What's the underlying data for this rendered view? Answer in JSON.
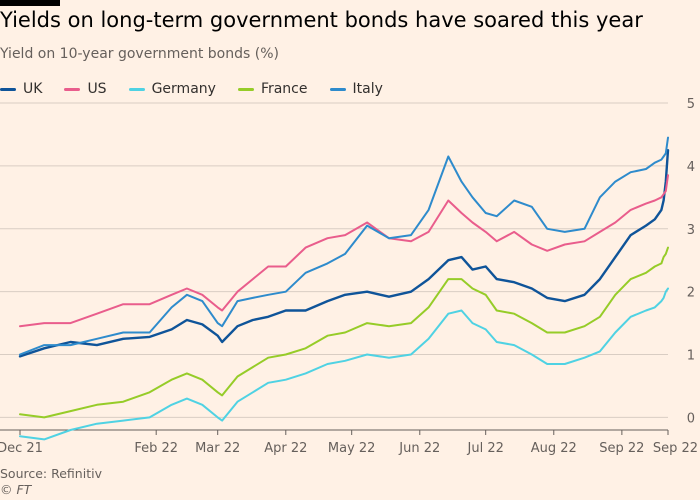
{
  "title": "Yields on long-term government bonds have soared this year",
  "subtitle": "Yield on 10-year government bonds (%)",
  "source": "Source: Refinitiv",
  "credit": "© FT",
  "chart_data": {
    "type": "line",
    "title": "Yields on long-term government bonds have soared this year",
    "ylabel": "Yield on 10-year government bonds (%)",
    "xlabel": "",
    "ylim": [
      -0.2,
      5
    ],
    "yticks": [
      0,
      1,
      2,
      3,
      4,
      5
    ],
    "xlim": [
      "2021-12-01",
      "2022-09-22"
    ],
    "xticks": [
      {
        "date": "2021-12-01",
        "label": "Dec 21"
      },
      {
        "date": "2022-02-01",
        "label": "Feb 22"
      },
      {
        "date": "2022-03-01",
        "label": "Mar 22"
      },
      {
        "date": "2022-04-01",
        "label": "Apr 22"
      },
      {
        "date": "2022-05-01",
        "label": "May 22"
      },
      {
        "date": "2022-06-01",
        "label": "Jun 22"
      },
      {
        "date": "2022-07-01",
        "label": "Jul 22"
      },
      {
        "date": "2022-08-01",
        "label": "Aug 22"
      },
      {
        "date": "2022-09-01",
        "label": "Sep 22"
      },
      {
        "date": "2022-09-22",
        "label": "Sep 22"
      }
    ],
    "grid": true,
    "legend_position": "top-left",
    "series": [
      {
        "name": "UK",
        "color": "#0f5499",
        "width": 2.4,
        "points": [
          [
            "2021-12-01",
            0.97
          ],
          [
            "2021-12-12",
            1.1
          ],
          [
            "2021-12-24",
            1.2
          ],
          [
            "2022-01-05",
            1.15
          ],
          [
            "2022-01-17",
            1.25
          ],
          [
            "2022-01-29",
            1.28
          ],
          [
            "2022-02-08",
            1.4
          ],
          [
            "2022-02-15",
            1.55
          ],
          [
            "2022-02-22",
            1.48
          ],
          [
            "2022-03-01",
            1.3
          ],
          [
            "2022-03-03",
            1.2
          ],
          [
            "2022-03-10",
            1.45
          ],
          [
            "2022-03-17",
            1.55
          ],
          [
            "2022-03-24",
            1.6
          ],
          [
            "2022-04-01",
            1.7
          ],
          [
            "2022-04-10",
            1.7
          ],
          [
            "2022-04-20",
            1.85
          ],
          [
            "2022-04-28",
            1.95
          ],
          [
            "2022-05-08",
            2.0
          ],
          [
            "2022-05-18",
            1.92
          ],
          [
            "2022-05-28",
            2.0
          ],
          [
            "2022-06-05",
            2.2
          ],
          [
            "2022-06-14",
            2.5
          ],
          [
            "2022-06-20",
            2.55
          ],
          [
            "2022-06-25",
            2.35
          ],
          [
            "2022-07-01",
            2.4
          ],
          [
            "2022-07-06",
            2.2
          ],
          [
            "2022-07-14",
            2.15
          ],
          [
            "2022-07-22",
            2.05
          ],
          [
            "2022-07-29",
            1.9
          ],
          [
            "2022-08-06",
            1.85
          ],
          [
            "2022-08-15",
            1.95
          ],
          [
            "2022-08-22",
            2.2
          ],
          [
            "2022-08-29",
            2.55
          ],
          [
            "2022-09-05",
            2.9
          ],
          [
            "2022-09-12",
            3.05
          ],
          [
            "2022-09-16",
            3.15
          ],
          [
            "2022-09-19",
            3.3
          ],
          [
            "2022-09-20",
            3.45
          ],
          [
            "2022-09-21",
            3.75
          ],
          [
            "2022-09-22",
            4.25
          ]
        ]
      },
      {
        "name": "US",
        "color": "#e95d8c",
        "width": 2.0,
        "points": [
          [
            "2021-12-01",
            1.45
          ],
          [
            "2021-12-12",
            1.5
          ],
          [
            "2021-12-24",
            1.5
          ],
          [
            "2022-01-05",
            1.65
          ],
          [
            "2022-01-17",
            1.8
          ],
          [
            "2022-01-29",
            1.8
          ],
          [
            "2022-02-08",
            1.95
          ],
          [
            "2022-02-15",
            2.05
          ],
          [
            "2022-02-22",
            1.95
          ],
          [
            "2022-03-01",
            1.75
          ],
          [
            "2022-03-03",
            1.7
          ],
          [
            "2022-03-10",
            2.0
          ],
          [
            "2022-03-17",
            2.2
          ],
          [
            "2022-03-24",
            2.4
          ],
          [
            "2022-04-01",
            2.4
          ],
          [
            "2022-04-10",
            2.7
          ],
          [
            "2022-04-20",
            2.85
          ],
          [
            "2022-04-28",
            2.9
          ],
          [
            "2022-05-08",
            3.1
          ],
          [
            "2022-05-18",
            2.85
          ],
          [
            "2022-05-28",
            2.8
          ],
          [
            "2022-06-05",
            2.95
          ],
          [
            "2022-06-14",
            3.45
          ],
          [
            "2022-06-20",
            3.25
          ],
          [
            "2022-06-25",
            3.1
          ],
          [
            "2022-07-01",
            2.95
          ],
          [
            "2022-07-06",
            2.8
          ],
          [
            "2022-07-14",
            2.95
          ],
          [
            "2022-07-22",
            2.75
          ],
          [
            "2022-07-29",
            2.65
          ],
          [
            "2022-08-06",
            2.75
          ],
          [
            "2022-08-15",
            2.8
          ],
          [
            "2022-08-22",
            2.95
          ],
          [
            "2022-08-29",
            3.1
          ],
          [
            "2022-09-05",
            3.3
          ],
          [
            "2022-09-12",
            3.4
          ],
          [
            "2022-09-16",
            3.45
          ],
          [
            "2022-09-19",
            3.5
          ],
          [
            "2022-09-20",
            3.55
          ],
          [
            "2022-09-21",
            3.6
          ],
          [
            "2022-09-22",
            3.85
          ]
        ]
      },
      {
        "name": "Germany",
        "color": "#4fd2e3",
        "width": 2.0,
        "points": [
          [
            "2021-12-01",
            -0.3
          ],
          [
            "2021-12-12",
            -0.35
          ],
          [
            "2021-12-24",
            -0.2
          ],
          [
            "2022-01-05",
            -0.1
          ],
          [
            "2022-01-17",
            -0.05
          ],
          [
            "2022-01-29",
            0.0
          ],
          [
            "2022-02-08",
            0.2
          ],
          [
            "2022-02-15",
            0.3
          ],
          [
            "2022-02-22",
            0.2
          ],
          [
            "2022-03-01",
            0.0
          ],
          [
            "2022-03-03",
            -0.05
          ],
          [
            "2022-03-10",
            0.25
          ],
          [
            "2022-03-17",
            0.4
          ],
          [
            "2022-03-24",
            0.55
          ],
          [
            "2022-04-01",
            0.6
          ],
          [
            "2022-04-10",
            0.7
          ],
          [
            "2022-04-20",
            0.85
          ],
          [
            "2022-04-28",
            0.9
          ],
          [
            "2022-05-08",
            1.0
          ],
          [
            "2022-05-18",
            0.95
          ],
          [
            "2022-05-28",
            1.0
          ],
          [
            "2022-06-05",
            1.25
          ],
          [
            "2022-06-14",
            1.65
          ],
          [
            "2022-06-20",
            1.7
          ],
          [
            "2022-06-25",
            1.5
          ],
          [
            "2022-07-01",
            1.4
          ],
          [
            "2022-07-06",
            1.2
          ],
          [
            "2022-07-14",
            1.15
          ],
          [
            "2022-07-22",
            1.0
          ],
          [
            "2022-07-29",
            0.85
          ],
          [
            "2022-08-06",
            0.85
          ],
          [
            "2022-08-15",
            0.95
          ],
          [
            "2022-08-22",
            1.05
          ],
          [
            "2022-08-29",
            1.35
          ],
          [
            "2022-09-05",
            1.6
          ],
          [
            "2022-09-12",
            1.7
          ],
          [
            "2022-09-16",
            1.75
          ],
          [
            "2022-09-19",
            1.85
          ],
          [
            "2022-09-20",
            1.9
          ],
          [
            "2022-09-21",
            2.0
          ],
          [
            "2022-09-22",
            2.05
          ]
        ]
      },
      {
        "name": "France",
        "color": "#96cc28",
        "width": 2.0,
        "points": [
          [
            "2021-12-01",
            0.05
          ],
          [
            "2021-12-12",
            0.0
          ],
          [
            "2021-12-24",
            0.1
          ],
          [
            "2022-01-05",
            0.2
          ],
          [
            "2022-01-17",
            0.25
          ],
          [
            "2022-01-29",
            0.4
          ],
          [
            "2022-02-08",
            0.6
          ],
          [
            "2022-02-15",
            0.7
          ],
          [
            "2022-02-22",
            0.6
          ],
          [
            "2022-03-01",
            0.4
          ],
          [
            "2022-03-03",
            0.35
          ],
          [
            "2022-03-10",
            0.65
          ],
          [
            "2022-03-17",
            0.8
          ],
          [
            "2022-03-24",
            0.95
          ],
          [
            "2022-04-01",
            1.0
          ],
          [
            "2022-04-10",
            1.1
          ],
          [
            "2022-04-20",
            1.3
          ],
          [
            "2022-04-28",
            1.35
          ],
          [
            "2022-05-08",
            1.5
          ],
          [
            "2022-05-18",
            1.45
          ],
          [
            "2022-05-28",
            1.5
          ],
          [
            "2022-06-05",
            1.75
          ],
          [
            "2022-06-14",
            2.2
          ],
          [
            "2022-06-20",
            2.2
          ],
          [
            "2022-06-25",
            2.05
          ],
          [
            "2022-07-01",
            1.95
          ],
          [
            "2022-07-06",
            1.7
          ],
          [
            "2022-07-14",
            1.65
          ],
          [
            "2022-07-22",
            1.5
          ],
          [
            "2022-07-29",
            1.35
          ],
          [
            "2022-08-06",
            1.35
          ],
          [
            "2022-08-15",
            1.45
          ],
          [
            "2022-08-22",
            1.6
          ],
          [
            "2022-08-29",
            1.95
          ],
          [
            "2022-09-05",
            2.2
          ],
          [
            "2022-09-12",
            2.3
          ],
          [
            "2022-09-16",
            2.4
          ],
          [
            "2022-09-19",
            2.45
          ],
          [
            "2022-09-20",
            2.55
          ],
          [
            "2022-09-21",
            2.6
          ],
          [
            "2022-09-22",
            2.7
          ]
        ]
      },
      {
        "name": "Italy",
        "color": "#2e8bcc",
        "width": 2.0,
        "points": [
          [
            "2021-12-01",
            1.0
          ],
          [
            "2021-12-12",
            1.15
          ],
          [
            "2021-12-24",
            1.15
          ],
          [
            "2022-01-05",
            1.25
          ],
          [
            "2022-01-17",
            1.35
          ],
          [
            "2022-01-29",
            1.35
          ],
          [
            "2022-02-08",
            1.75
          ],
          [
            "2022-02-15",
            1.95
          ],
          [
            "2022-02-22",
            1.85
          ],
          [
            "2022-03-01",
            1.5
          ],
          [
            "2022-03-03",
            1.45
          ],
          [
            "2022-03-10",
            1.85
          ],
          [
            "2022-03-17",
            1.9
          ],
          [
            "2022-03-24",
            1.95
          ],
          [
            "2022-04-01",
            2.0
          ],
          [
            "2022-04-10",
            2.3
          ],
          [
            "2022-04-20",
            2.45
          ],
          [
            "2022-04-28",
            2.6
          ],
          [
            "2022-05-08",
            3.05
          ],
          [
            "2022-05-18",
            2.85
          ],
          [
            "2022-05-28",
            2.9
          ],
          [
            "2022-06-05",
            3.3
          ],
          [
            "2022-06-14",
            4.15
          ],
          [
            "2022-06-20",
            3.75
          ],
          [
            "2022-06-25",
            3.5
          ],
          [
            "2022-07-01",
            3.25
          ],
          [
            "2022-07-06",
            3.2
          ],
          [
            "2022-07-14",
            3.45
          ],
          [
            "2022-07-22",
            3.35
          ],
          [
            "2022-07-29",
            3.0
          ],
          [
            "2022-08-06",
            2.95
          ],
          [
            "2022-08-15",
            3.0
          ],
          [
            "2022-08-22",
            3.5
          ],
          [
            "2022-08-29",
            3.75
          ],
          [
            "2022-09-05",
            3.9
          ],
          [
            "2022-09-12",
            3.95
          ],
          [
            "2022-09-16",
            4.05
          ],
          [
            "2022-09-19",
            4.1
          ],
          [
            "2022-09-20",
            4.15
          ],
          [
            "2022-09-21",
            4.2
          ],
          [
            "2022-09-22",
            4.45
          ]
        ]
      }
    ]
  }
}
